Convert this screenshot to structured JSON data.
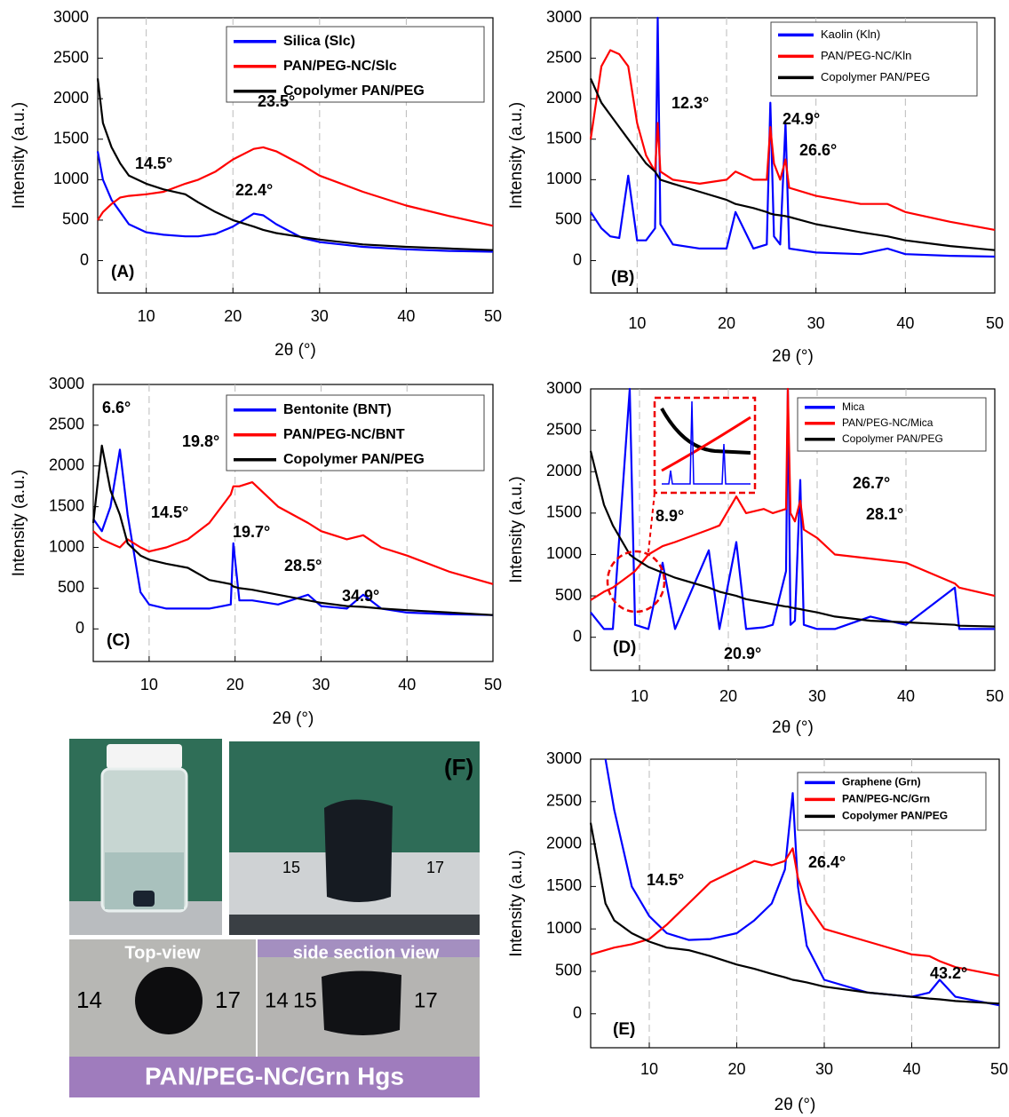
{
  "chart_data": [
    {
      "type": "line",
      "panel_label": "(A)",
      "xlabel": "2θ (°)",
      "ylabel": "Intensity (a.u.)",
      "grid": true,
      "legend": "upper right",
      "xlim": [
        4.4,
        50
      ],
      "ylim": [
        -400,
        3000
      ],
      "xticks": [
        10,
        20,
        30,
        40,
        50
      ],
      "yticks": [
        0,
        500,
        1000,
        1500,
        2000,
        2500,
        3000
      ],
      "x": [
        4.4,
        5,
        6,
        7,
        8,
        10,
        12,
        14.5,
        16,
        18,
        20,
        22.4,
        23.5,
        25,
        28,
        30,
        35,
        40,
        45,
        50
      ],
      "series": [
        {
          "name": "Silica (Slc)",
          "color": "#0000ff",
          "values": [
            1350,
            1000,
            750,
            600,
            450,
            350,
            320,
            300,
            300,
            330,
            420,
            580,
            560,
            450,
            280,
            230,
            170,
            140,
            120,
            110
          ]
        },
        {
          "name": "PAN/PEG-NC/Slc",
          "color": "#ff0000",
          "values": [
            500,
            600,
            700,
            780,
            800,
            820,
            850,
            950,
            1000,
            1100,
            1250,
            1380,
            1400,
            1350,
            1180,
            1050,
            850,
            680,
            550,
            430
          ]
        },
        {
          "name": "Copolymer PAN/PEG",
          "color": "#000000",
          "values": [
            2250,
            1700,
            1400,
            1200,
            1050,
            950,
            880,
            820,
            720,
            600,
            500,
            420,
            380,
            340,
            290,
            260,
            200,
            170,
            150,
            130
          ]
        }
      ],
      "annotations": [
        "14.5°",
        "23.5°",
        "22.4°"
      ]
    },
    {
      "type": "line",
      "panel_label": "(B)",
      "xlabel": "2θ (°)",
      "ylabel": "Intensity (a.u.)",
      "grid": true,
      "legend": "upper right",
      "xlim": [
        4.8,
        50
      ],
      "ylim": [
        -400,
        3000
      ],
      "xticks": [
        10,
        20,
        30,
        40,
        50
      ],
      "yticks": [
        0,
        500,
        1000,
        1500,
        2000,
        2500,
        3000
      ],
      "x": [
        4.8,
        6,
        7,
        8,
        9,
        10,
        11,
        12,
        12.3,
        12.6,
        14,
        17,
        20,
        21,
        23,
        24.5,
        24.9,
        25.3,
        26,
        26.6,
        27,
        30,
        35,
        38,
        40,
        45,
        50
      ],
      "series": [
        {
          "name": "Kaolin (Kln)",
          "color": "#0000ff",
          "values": [
            600,
            400,
            300,
            280,
            1050,
            250,
            250,
            400,
            3000,
            450,
            200,
            150,
            150,
            600,
            150,
            200,
            1950,
            300,
            200,
            1700,
            150,
            100,
            80,
            150,
            80,
            60,
            50
          ]
        },
        {
          "name": "PAN/PEG-NC/Kln",
          "color": "#ff0000",
          "values": [
            1500,
            2400,
            2600,
            2550,
            2400,
            1700,
            1300,
            1100,
            1700,
            1100,
            1000,
            950,
            1000,
            1100,
            1000,
            1000,
            1650,
            1200,
            1000,
            1250,
            900,
            800,
            700,
            700,
            600,
            480,
            380
          ]
        },
        {
          "name": "Copolymer PAN/PEG",
          "color": "#000000",
          "values": [
            2250,
            1950,
            1800,
            1650,
            1500,
            1350,
            1200,
            1100,
            1050,
            1000,
            950,
            850,
            750,
            700,
            650,
            600,
            580,
            570,
            560,
            550,
            540,
            450,
            350,
            300,
            250,
            180,
            130
          ]
        }
      ],
      "annotations": [
        "12.3°",
        "24.9°",
        "26.6°"
      ]
    },
    {
      "type": "line",
      "panel_label": "(C)",
      "xlabel": "2θ (°)",
      "ylabel": "Intensity (a.u.)",
      "grid": true,
      "legend": "upper right",
      "xlim": [
        3.5,
        50
      ],
      "ylim": [
        -400,
        3000
      ],
      "xticks": [
        10,
        20,
        30,
        40,
        50
      ],
      "yticks": [
        0,
        500,
        1000,
        1500,
        2000,
        2500,
        3000
      ],
      "x": [
        3.5,
        4.5,
        5.5,
        6.6,
        7.5,
        9,
        10,
        12,
        14.5,
        17,
        19.5,
        19.8,
        20.5,
        22,
        25,
        28.5,
        30,
        33,
        34.9,
        37,
        40,
        45,
        50
      ],
      "series": [
        {
          "name": "Bentonite (BNT)",
          "color": "#0000ff",
          "values": [
            1350,
            1200,
            1500,
            2200,
            1400,
            450,
            300,
            250,
            250,
            250,
            300,
            1050,
            350,
            350,
            300,
            420,
            280,
            250,
            420,
            250,
            200,
            180,
            170
          ]
        },
        {
          "name": "PAN/PEG-NC/BNT",
          "color": "#ff0000",
          "values": [
            1200,
            1100,
            1050,
            1000,
            1100,
            1000,
            950,
            1000,
            1100,
            1300,
            1650,
            1750,
            1750,
            1800,
            1500,
            1300,
            1200,
            1100,
            1150,
            1000,
            900,
            700,
            550
          ]
        },
        {
          "name": "Copolymer PAN/PEG",
          "color": "#000000",
          "values": [
            1300,
            2250,
            1700,
            1400,
            1050,
            900,
            850,
            800,
            750,
            600,
            550,
            520,
            500,
            480,
            420,
            350,
            320,
            280,
            270,
            250,
            230,
            200,
            170
          ]
        }
      ],
      "annotations": [
        "6.6°",
        "19.8°",
        "14.5°",
        "19.7°",
        "28.5°",
        "34.9°"
      ]
    },
    {
      "type": "line",
      "panel_label": "(D)",
      "xlabel": "2θ (°)",
      "ylabel": "Intensity (a.u.)",
      "grid": true,
      "legend": "upper right",
      "xlim": [
        4.5,
        50
      ],
      "ylim": [
        -400,
        3000
      ],
      "xticks": [
        10,
        20,
        30,
        40,
        50
      ],
      "yticks": [
        0,
        500,
        1000,
        1500,
        2000,
        2500,
        3000
      ],
      "x": [
        4.5,
        6,
        7,
        8.9,
        9.5,
        11,
        12.6,
        14,
        17.8,
        19,
        20.9,
        22,
        24,
        25,
        26.5,
        26.7,
        27,
        27.5,
        28.1,
        28.5,
        30,
        32,
        36,
        40,
        45.5,
        46,
        50
      ],
      "series": [
        {
          "name": "Mica",
          "color": "#0000ff",
          "values": [
            300,
            100,
            100,
            3000,
            150,
            100,
            900,
            100,
            1050,
            100,
            1150,
            100,
            120,
            150,
            800,
            3000,
            150,
            200,
            1900,
            150,
            100,
            100,
            250,
            150,
            600,
            100,
            100
          ]
        },
        {
          "name": "PAN/PEG-NC/Mica",
          "color": "#ff0000",
          "values": [
            450,
            550,
            600,
            750,
            800,
            1000,
            1100,
            1150,
            1300,
            1350,
            1700,
            1500,
            1550,
            1500,
            1550,
            3000,
            1500,
            1400,
            1650,
            1300,
            1200,
            1000,
            950,
            900,
            650,
            600,
            500
          ]
        },
        {
          "name": "Copolymer PAN/PEG",
          "color": "#000000",
          "values": [
            2250,
            1600,
            1350,
            1000,
            950,
            850,
            780,
            720,
            600,
            550,
            500,
            460,
            420,
            400,
            370,
            370,
            360,
            350,
            340,
            330,
            300,
            250,
            200,
            180,
            150,
            140,
            130
          ]
        }
      ],
      "annotations": [
        "26.7°",
        "28.1°",
        "8.9°",
        "20.9°"
      ]
    },
    {
      "type": "line",
      "panel_label": "(E)",
      "xlabel": "2θ (°)",
      "ylabel": "Intensity (a.u.)",
      "grid": true,
      "legend": "upper right",
      "xlim": [
        3.3,
        50
      ],
      "ylim": [
        -400,
        3000
      ],
      "xticks": [
        10,
        20,
        30,
        40,
        50
      ],
      "yticks": [
        0,
        500,
        1000,
        1500,
        2000,
        2500,
        3000
      ],
      "x": [
        3.3,
        5,
        6,
        8,
        10,
        12,
        14.5,
        17,
        20,
        22,
        24,
        25.5,
        26.4,
        27,
        28,
        30,
        35,
        40,
        42,
        43.2,
        45,
        50
      ],
      "series": [
        {
          "name": "Graphene (Grn)",
          "color": "#0000ff",
          "values": [
            null,
            3000,
            2400,
            1500,
            1150,
            950,
            870,
            880,
            950,
            1100,
            1300,
            1700,
            2600,
            1500,
            800,
            400,
            250,
            200,
            250,
            400,
            200,
            100
          ]
        },
        {
          "name": "PAN/PEG-NC/Grn",
          "color": "#ff0000",
          "values": [
            700,
            750,
            780,
            820,
            880,
            1050,
            1300,
            1550,
            1700,
            1800,
            1750,
            1800,
            1950,
            1600,
            1300,
            1000,
            850,
            700,
            680,
            620,
            550,
            450
          ]
        },
        {
          "name": "Copolymer PAN/PEG",
          "color": "#000000",
          "values": [
            2250,
            1300,
            1100,
            950,
            850,
            780,
            750,
            680,
            580,
            530,
            470,
            430,
            400,
            390,
            370,
            320,
            250,
            200,
            180,
            170,
            150,
            120
          ]
        }
      ],
      "annotations": [
        "14.5°",
        "26.4°",
        "43.2°"
      ]
    }
  ],
  "photo_panel": {
    "panel_label": "(F)",
    "top_view": "Top-view",
    "side_view": "side section view",
    "caption": "PAN/PEG-NC/Grn Hgs",
    "ruler_numbers": [
      "15",
      "17",
      "14"
    ]
  }
}
